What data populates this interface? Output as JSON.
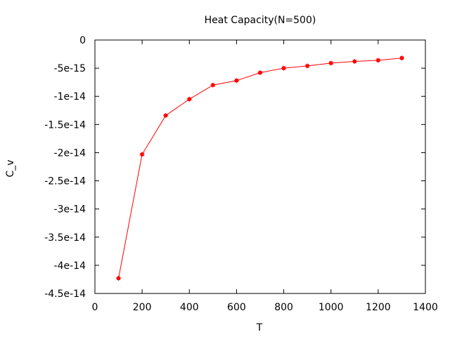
{
  "chart_data": {
    "type": "line",
    "title": "Heat Capacity(N=500)",
    "xlabel": "T",
    "ylabel": "C_v",
    "xlim": [
      0,
      1400
    ],
    "ylim": [
      -4.5e-14,
      0
    ],
    "x_ticks": [
      0,
      200,
      400,
      600,
      800,
      1000,
      1200,
      1400
    ],
    "x_tick_labels": [
      "0",
      "200",
      "400",
      "600",
      "800",
      "1000",
      "1200",
      "1400"
    ],
    "y_ticks": [
      0,
      -5e-15,
      -1e-14,
      -1.5e-14,
      -2e-14,
      -2.5e-14,
      -3e-14,
      -3.5e-14,
      -4e-14,
      -4.5e-14
    ],
    "y_tick_labels": [
      "0",
      "-5e-15",
      "-1e-14",
      "-1.5e-14",
      "-2e-14",
      "-2.5e-14",
      "-3e-14",
      "-3.5e-14",
      "-4e-14",
      "-4.5e-14"
    ],
    "grid": false,
    "legend": "none",
    "series": [
      {
        "color": "#ff0000",
        "x": [
          100,
          200,
          300,
          400,
          500,
          600,
          700,
          800,
          900,
          1000,
          1100,
          1200,
          1300
        ],
        "y": [
          -4.23e-14,
          -2.03e-14,
          -1.34e-14,
          -1.05e-14,
          -8e-15,
          -7.2e-15,
          -5.8e-15,
          -5e-15,
          -4.6e-15,
          -4.1e-15,
          -3.8e-15,
          -3.6e-15,
          -3.2e-15
        ]
      }
    ]
  }
}
